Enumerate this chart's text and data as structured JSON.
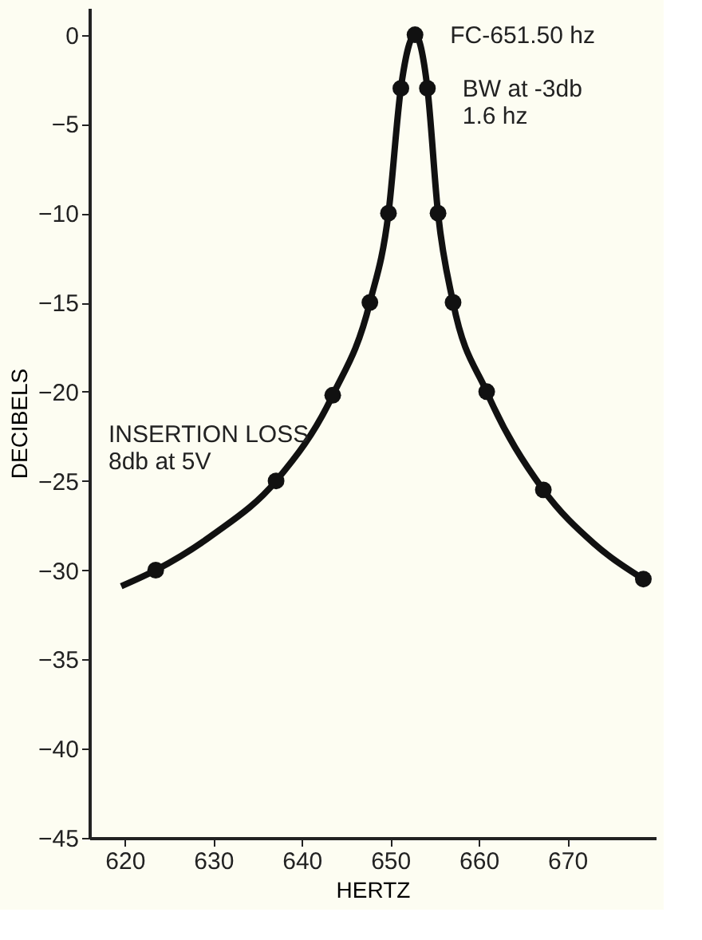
{
  "chart_data": {
    "type": "line",
    "xlabel": "HERTZ",
    "ylabel": "DECIBELS",
    "xlim": [
      616,
      680
    ],
    "xticks": [
      620,
      630,
      640,
      650,
      660,
      670
    ],
    "ylim": [
      -45,
      1.5
    ],
    "yticks": [
      0,
      -5,
      -10,
      -15,
      -20,
      -25,
      -30,
      -35,
      -40,
      -45
    ],
    "grid": false,
    "series": [
      {
        "color": "#111111",
        "marker": "none",
        "x": [
          619.6,
          623.5,
          630.0,
          637.1,
          643.5,
          647.7,
          649.8,
          651.2,
          652.8,
          654.2,
          655.4,
          657.1,
          660.9,
          667.3,
          673.0,
          678.6
        ],
        "values": [
          -30.9,
          -30,
          -28,
          -25,
          -20.2,
          -15,
          -10,
          -3,
          0,
          -3,
          -10,
          -15,
          -20,
          -25.5,
          -28.5,
          -30.5
        ]
      },
      {
        "type": "scatter",
        "color": "#111111",
        "marker": "circle",
        "x": [
          623.5,
          637.1,
          643.5,
          647.7,
          649.8,
          651.2,
          652.8,
          654.2,
          655.4,
          657.1,
          660.9,
          667.3,
          678.6
        ],
        "values": [
          -30,
          -25,
          -20.2,
          -15,
          -10,
          -3,
          0,
          -3,
          -10,
          -15,
          -20,
          -25.5,
          -30.5
        ]
      }
    ],
    "annotations": [
      {
        "text": "FC-651.50 hz",
        "x": 652.8,
        "y": 0
      },
      {
        "text": "BW at -3db\n1.6 hz",
        "x": 654.2,
        "y": -3
      },
      "INSERTION LOSS\n8db at 5V"
    ]
  }
}
